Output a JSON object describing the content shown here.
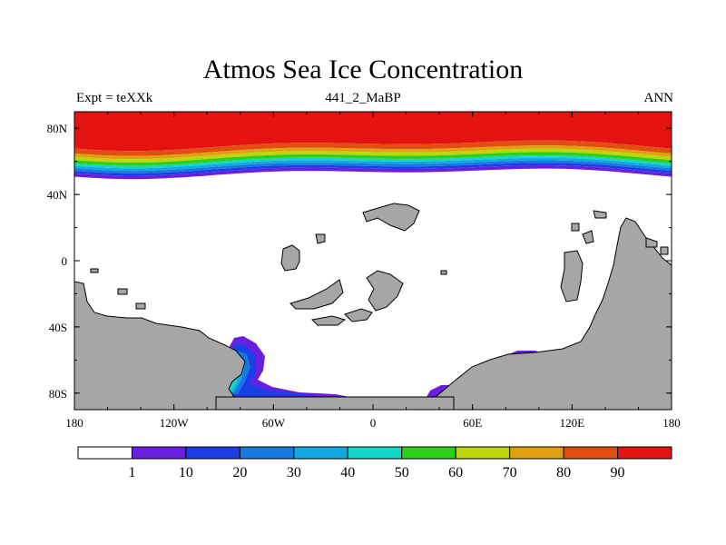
{
  "title": "Atmos Sea Ice Concentration",
  "subtitle_left": "Expt = teXXk",
  "subtitle_center": "441_2_MaBP",
  "subtitle_right": "ANN",
  "map": {
    "projection": "cylindrical equidistant",
    "lon_range": [
      -180,
      180
    ],
    "lat_range": [
      -90,
      90
    ],
    "lon_ticks": [
      {
        "value": -180,
        "label": "180"
      },
      {
        "value": -120,
        "label": "120W"
      },
      {
        "value": -60,
        "label": "60W"
      },
      {
        "value": 0,
        "label": "0"
      },
      {
        "value": 60,
        "label": "60E"
      },
      {
        "value": 120,
        "label": "120E"
      },
      {
        "value": 180,
        "label": "180"
      }
    ],
    "lat_ticks": [
      {
        "value": 80,
        "label": "80N"
      },
      {
        "value": 40,
        "label": "40N"
      },
      {
        "value": 0,
        "label": "0"
      },
      {
        "value": -40,
        "label": "40S"
      },
      {
        "value": -80,
        "label": "80S"
      }
    ],
    "land_color": "#a6a6a6",
    "ocean_color": "#ffffff",
    "arctic_ice_bands": [
      {
        "lat_max": 90,
        "lat_min": 70,
        "color": "#e51212"
      },
      {
        "lat_max": 70,
        "lat_min": 67,
        "color": "#e04e12"
      },
      {
        "lat_max": 67,
        "lat_min": 65,
        "color": "#e0a010"
      },
      {
        "lat_max": 65,
        "lat_min": 63,
        "color": "#bcd60d"
      },
      {
        "lat_max": 63,
        "lat_min": 61,
        "color": "#2ecf1c"
      },
      {
        "lat_max": 61,
        "lat_min": 59.5,
        "color": "#12d6c8"
      },
      {
        "lat_max": 59.5,
        "lat_min": 58,
        "color": "#12a8e0"
      },
      {
        "lat_max": 58,
        "lat_min": 56.5,
        "color": "#1678e0"
      },
      {
        "lat_max": 56.5,
        "lat_min": 55,
        "color": "#1a3fe6"
      },
      {
        "lat_max": 55,
        "lat_min": 53,
        "color": "#6a1ee0"
      }
    ]
  },
  "colorbar": {
    "colors": [
      "#ffffff",
      "#6a1ee0",
      "#1a3fe6",
      "#1678e0",
      "#12a8e0",
      "#12d6c8",
      "#2ecf1c",
      "#bcd60d",
      "#e0a010",
      "#e04e12",
      "#e51212"
    ],
    "labels": [
      "1",
      "10",
      "20",
      "30",
      "40",
      "50",
      "60",
      "70",
      "80",
      "90"
    ],
    "units": "%"
  }
}
